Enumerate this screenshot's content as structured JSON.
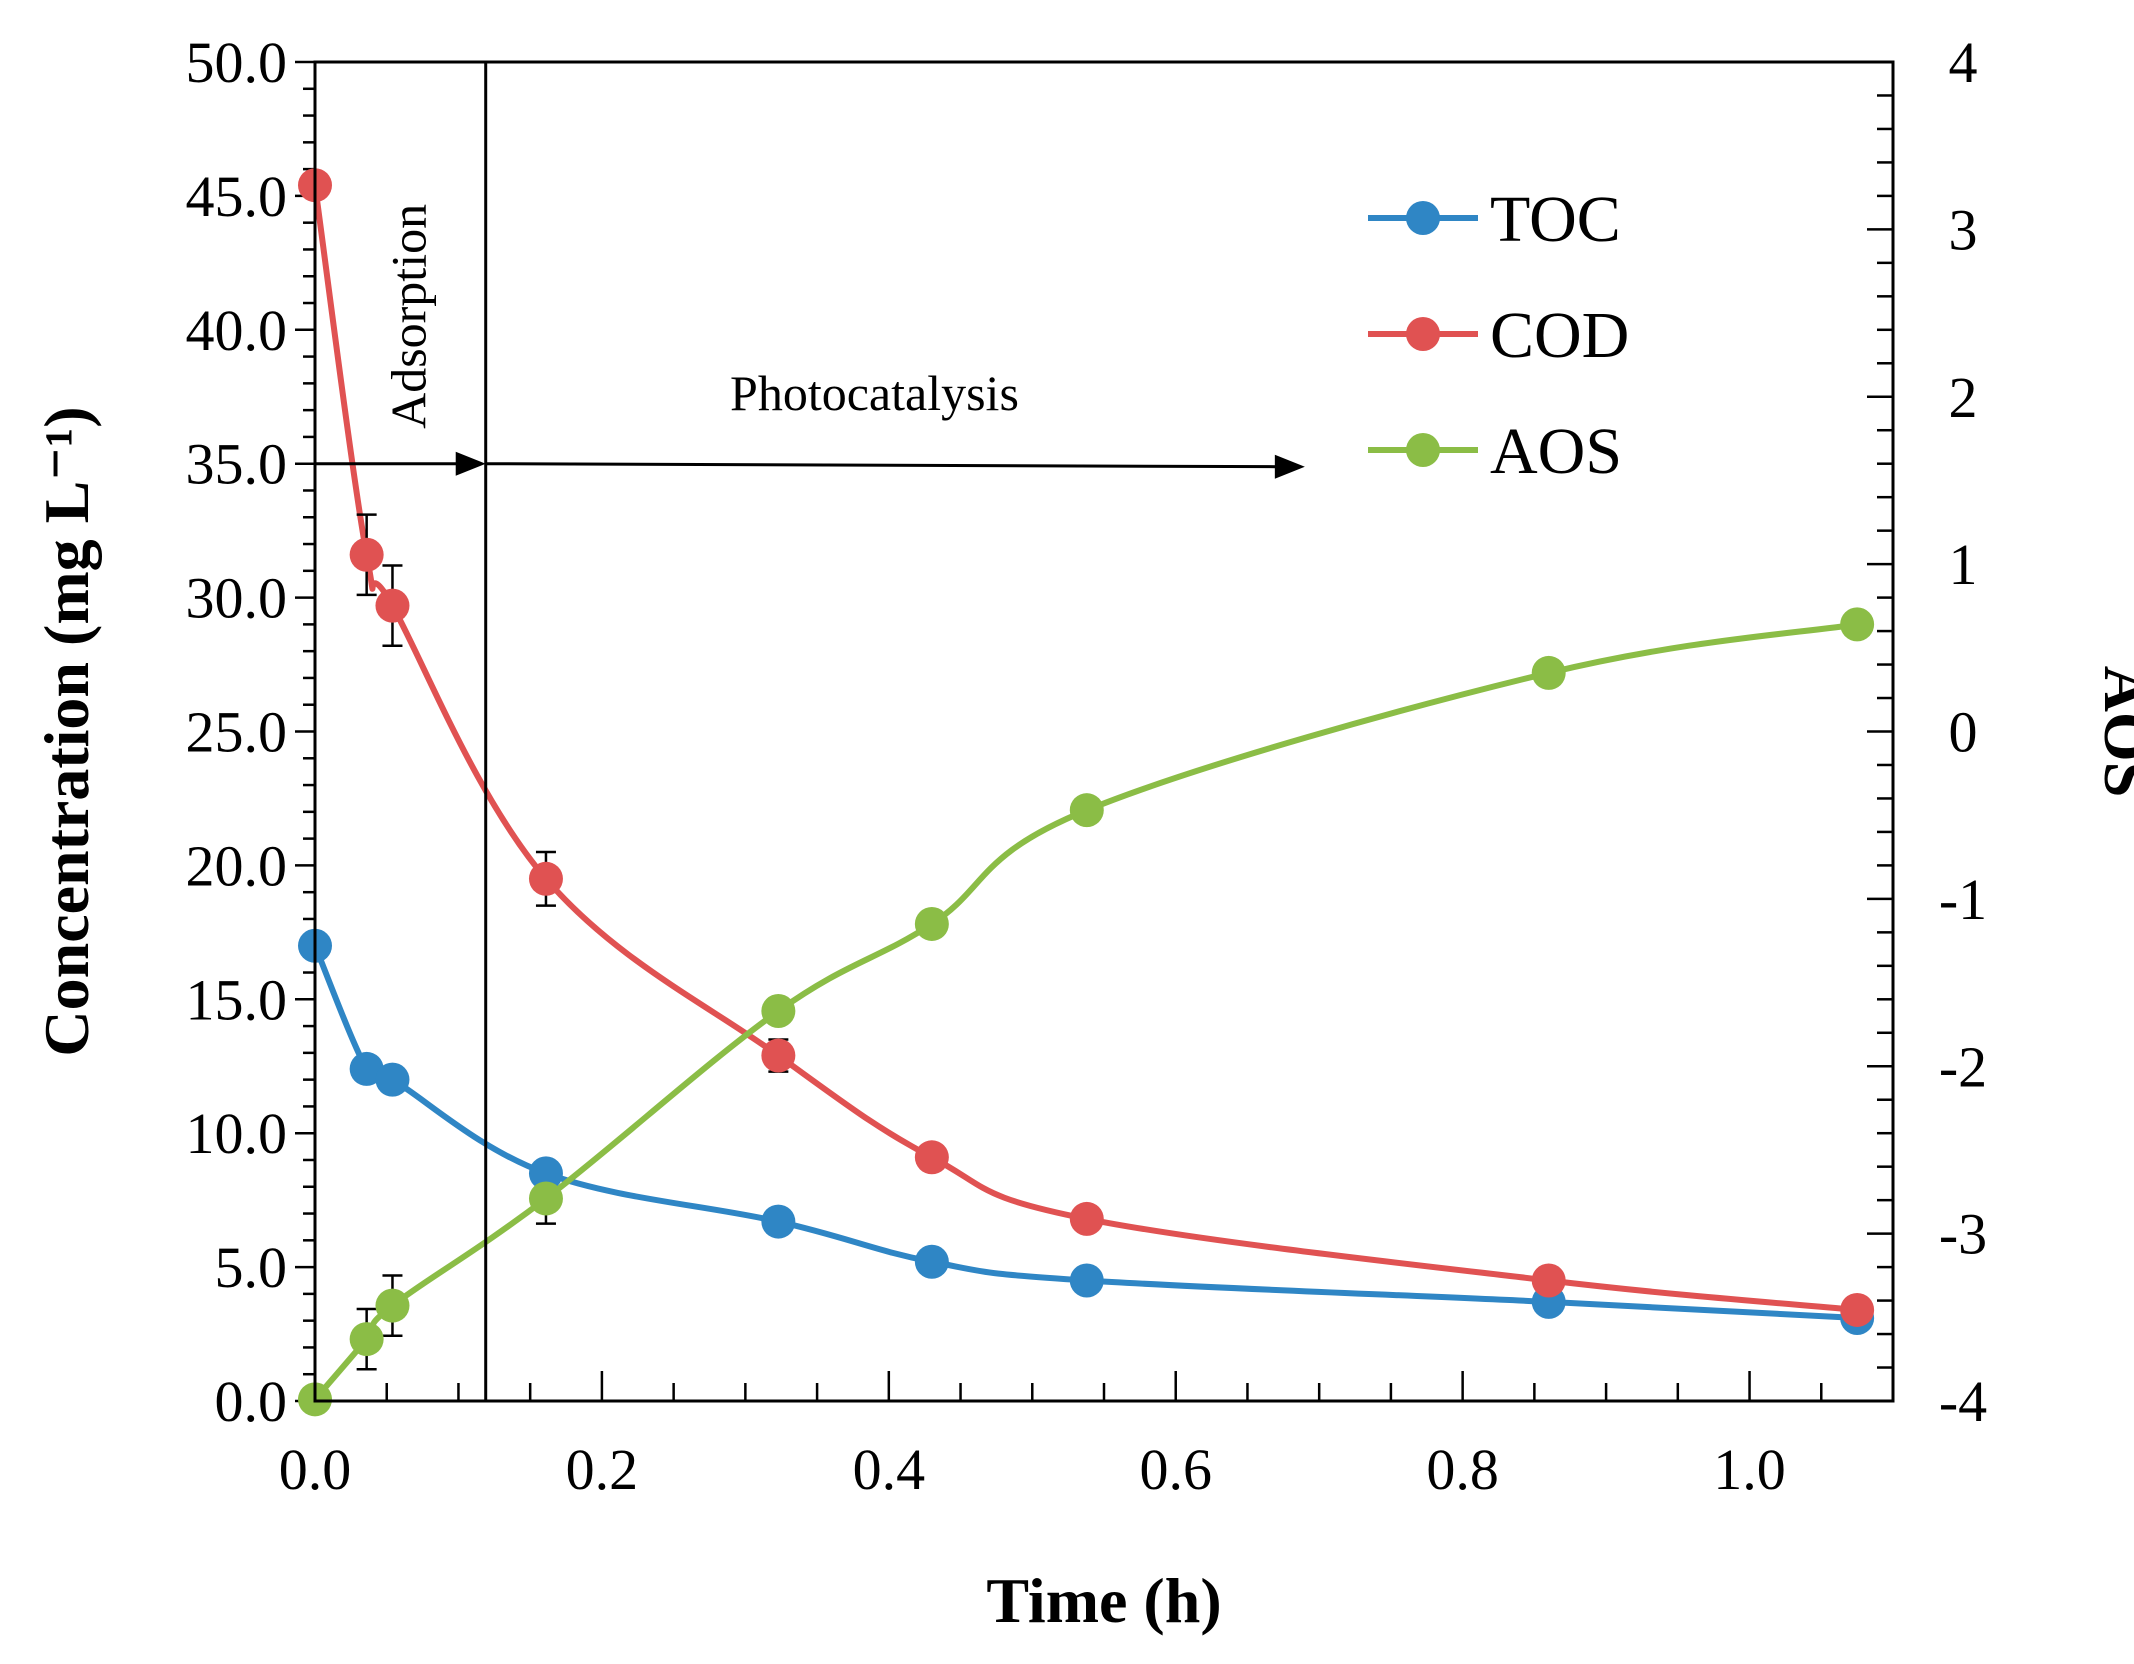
{
  "chart_data": {
    "type": "line",
    "xlabel": "Time (h)",
    "ylabel_left": "Concentration (mg L⁻¹)",
    "ylabel_right": "AOS",
    "xlim": [
      0,
      1.1
    ],
    "ylim_left": [
      0,
      50
    ],
    "ylim_right": [
      -4,
      4
    ],
    "x_ticks": [
      0.0,
      0.2,
      0.4,
      0.6,
      0.8,
      1.0
    ],
    "x_tick_labels": [
      "0.0",
      "0.2",
      "0.4",
      "0.6",
      "0.8",
      "1.0"
    ],
    "y_left_ticks": [
      0,
      5,
      10,
      15,
      20,
      25,
      30,
      35,
      40,
      45,
      50
    ],
    "y_left_tick_labels": [
      "0.0",
      "5.0",
      "10.0",
      "15.0",
      "20.0",
      "25.0",
      "30.0",
      "35.0",
      "40.0",
      "45.0",
      "50.0"
    ],
    "y_right_ticks": [
      -4,
      -3,
      -2,
      -1,
      0,
      1,
      2,
      3,
      4
    ],
    "y_right_tick_labels": [
      "-4",
      "-3",
      "-2",
      "-1",
      "0",
      "1",
      "2",
      "3",
      "4"
    ],
    "divider_x": 0.119,
    "annotations": {
      "adsorption": "Adsorption",
      "photocatalysis": "Photocatalysis"
    },
    "legend_position": "top-right",
    "series": [
      {
        "name": "TOC",
        "color": "#2f86c5",
        "axis": "left",
        "x": [
          0.0,
          0.036,
          0.054,
          0.161,
          0.323,
          0.43,
          0.538,
          0.86,
          1.075
        ],
        "y": [
          17.0,
          12.4,
          12.0,
          8.5,
          6.7,
          5.2,
          4.5,
          3.7,
          3.1
        ],
        "err": [
          0,
          0.4,
          0.4,
          0.3,
          0,
          0,
          0,
          0,
          0
        ]
      },
      {
        "name": "COD",
        "color": "#e05252",
        "axis": "left",
        "x": [
          0.0,
          0.036,
          0.054,
          0.161,
          0.323,
          0.43,
          0.538,
          0.86,
          1.075
        ],
        "y": [
          45.4,
          31.6,
          29.7,
          19.5,
          12.9,
          9.1,
          6.8,
          4.5,
          3.4
        ],
        "err": [
          0,
          1.5,
          1.5,
          1.0,
          0.6,
          0,
          0,
          0,
          0
        ]
      },
      {
        "name": "AOS",
        "color": "#8bbd46",
        "axis": "right",
        "x": [
          0.0,
          0.036,
          0.054,
          0.161,
          0.323,
          0.43,
          0.538,
          0.86,
          1.075
        ],
        "y": [
          -3.99,
          -3.63,
          -3.43,
          -2.79,
          -1.67,
          -1.15,
          -0.47,
          0.35,
          0.64
        ],
        "err": [
          0,
          0.18,
          0.18,
          0.15,
          0,
          0,
          0,
          0,
          0
        ]
      }
    ]
  }
}
